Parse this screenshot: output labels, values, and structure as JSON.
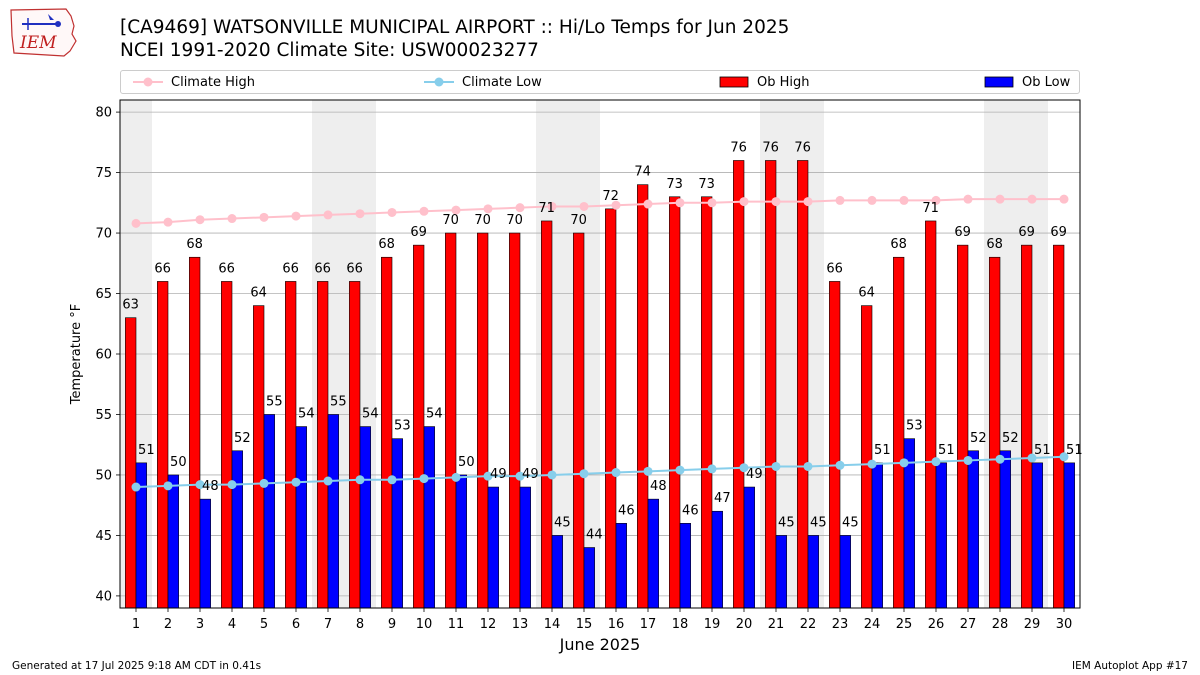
{
  "header": {
    "title_line1": "[CA9469] WATSONVILLE MUNICIPAL AIRPORT :: Hi/Lo Temps for Jun 2025",
    "title_line2": "NCEI 1991-2020 Climate Site: USW00023277",
    "logo_text": "IEM"
  },
  "footer": {
    "left": "Generated at 17 Jul 2025 9:18 AM CDT in 0.41s",
    "right": "IEM Autoplot App #17"
  },
  "colors": {
    "ob_high": "#ff0000",
    "ob_low": "#0000ff",
    "climate_high": "#ffc0cb",
    "climate_low": "#87ceeb",
    "weekend_shade": "#eeeeee",
    "grid": "#b0b0b0"
  },
  "chart_data": {
    "type": "bar",
    "xlabel": "June 2025",
    "ylabel": "Temperature °F",
    "ylim": [
      39,
      81
    ],
    "yticks": [
      40,
      45,
      50,
      55,
      60,
      65,
      70,
      75,
      80
    ],
    "grid": true,
    "legend_position": "top",
    "categories": [
      "1",
      "2",
      "3",
      "4",
      "5",
      "6",
      "7",
      "8",
      "9",
      "10",
      "11",
      "12",
      "13",
      "14",
      "15",
      "16",
      "17",
      "18",
      "19",
      "20",
      "21",
      "22",
      "23",
      "24",
      "25",
      "26",
      "27",
      "28",
      "29",
      "30"
    ],
    "shaded_days": [
      "1",
      "7",
      "8",
      "14",
      "15",
      "21",
      "22",
      "28",
      "29"
    ],
    "series": [
      {
        "name": "Climate High",
        "kind": "line",
        "values": [
          70.8,
          70.9,
          71.1,
          71.2,
          71.3,
          71.4,
          71.5,
          71.6,
          71.7,
          71.8,
          71.9,
          72.0,
          72.1,
          72.2,
          72.2,
          72.3,
          72.4,
          72.5,
          72.5,
          72.6,
          72.6,
          72.6,
          72.7,
          72.7,
          72.7,
          72.7,
          72.8,
          72.8,
          72.8,
          72.8
        ]
      },
      {
        "name": "Climate Low",
        "kind": "line",
        "values": [
          49.0,
          49.1,
          49.2,
          49.2,
          49.3,
          49.4,
          49.5,
          49.6,
          49.6,
          49.7,
          49.8,
          49.9,
          49.9,
          50.0,
          50.1,
          50.2,
          50.3,
          50.4,
          50.5,
          50.6,
          50.7,
          50.7,
          50.8,
          50.9,
          51.0,
          51.1,
          51.2,
          51.3,
          51.4,
          51.5
        ]
      },
      {
        "name": "Ob High",
        "kind": "bar",
        "values": [
          63,
          66,
          68,
          66,
          64,
          66,
          66,
          66,
          68,
          69,
          70,
          70,
          70,
          71,
          70,
          72,
          74,
          73,
          73,
          76,
          76,
          76,
          66,
          64,
          68,
          71,
          69,
          68,
          69,
          69
        ]
      },
      {
        "name": "Ob Low",
        "kind": "bar",
        "values": [
          51,
          50,
          48,
          52,
          55,
          54,
          55,
          54,
          53,
          54,
          50,
          49,
          49,
          45,
          44,
          46,
          48,
          46,
          47,
          49,
          45,
          45,
          45,
          51,
          53,
          51,
          52,
          52,
          51,
          51
        ]
      }
    ]
  }
}
